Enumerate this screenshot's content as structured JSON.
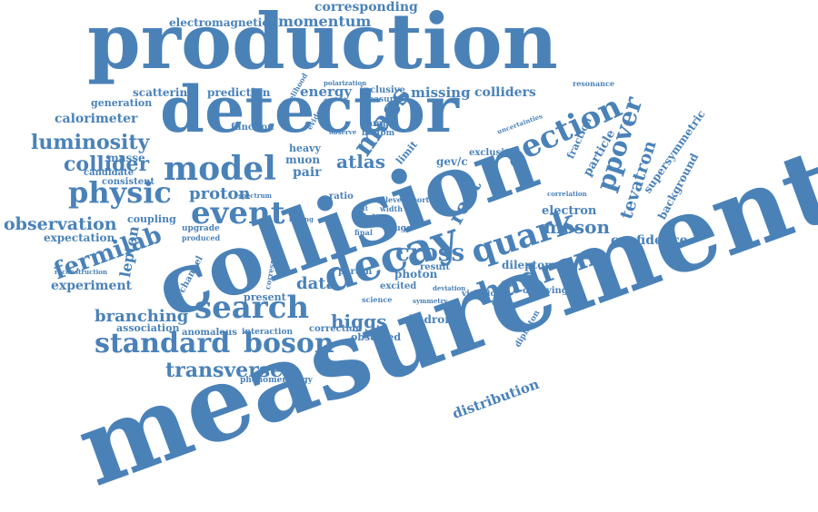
{
  "accent_color": "#4a82b8",
  "words": {
    "measurement": "measurement",
    "collision": "collision",
    "production": "production",
    "detector": "detector",
    "decay": "decay",
    "search": "search",
    "model": "model",
    "physic": "physic",
    "event": "event",
    "quark": "quark",
    "hadron": "hadron",
    "section": "section",
    "cross": "cross",
    "boson": "boson",
    "standard": "standard",
    "fermilab": "fermilab",
    "transverse": "transverse",
    "luminosity": "luminosity",
    "collider": "collider",
    "observation": "observation",
    "proton": "proton",
    "ppover": "ppover",
    "tevatron": "tevatron",
    "meson": "meson",
    "higgs": "higgs",
    "branching": "branching",
    "mass": "mass",
    "atlas": "atlas",
    "root": "root",
    "data": "data",
    "momentum": "momentum",
    "corresponding": "corresponding",
    "electromagnetic": "electromagnetic",
    "calorimeter": "calorimeter",
    "scattering": "scattering",
    "prediction": "prediction",
    "energy": "energy",
    "missing": "missing",
    "colliders": "colliders",
    "generation": "generation",
    "distribution": "distribution",
    "confidence": "confidence",
    "experiment": "experiment",
    "expectation": "expectation",
    "masse": "masse",
    "candidate": "candidate",
    "consistent": "consistent",
    "coupling": "coupling",
    "lepton": "lepton",
    "association": "association",
    "anomalous": "anomalous",
    "observed": "observed",
    "hadronic": "hadronic",
    "electron": "electron",
    "dilepton": "dilepton",
    "background": "background",
    "supersymmetric": "supersymmetric",
    "particle": "particle",
    "fraction": "fraction",
    "pair": "pair",
    "muon": "muon",
    "heavy": "heavy",
    "photon": "photon",
    "excited": "excited",
    "present": "present",
    "correction": "correction",
    "interaction": "interaction",
    "phenomenology": "phenomenology",
    "decaying": "decaying",
    "diphoton": "diphoton",
    "violation": "violation",
    "parton": "parton",
    "result": "result",
    "channel": "channel",
    "upgrade": "upgrade",
    "produced": "produced",
    "limit": "limit",
    "gev_c": "gev/c",
    "exclusive": "exclusive",
    "inclusive": "inclusive",
    "measure": "measure",
    "function": "function",
    "sample": "sample",
    "bottom": "bottom",
    "ratio": "ratio",
    "uncertainties": "uncertainties",
    "resonance": "resonance",
    "reconstruction": "reconstruction",
    "likelihood": "likelihood",
    "evidence": "evidence",
    "polarization": "polarization",
    "correspond": "correspond",
    "science": "science",
    "jet": "jet",
    "report": "report",
    "level": "level",
    "final": "final",
    "width": "width",
    "stat": "stat",
    "gauge": "gauge",
    "mixing": "mixing",
    "symmetry": "symmetry",
    "deviation": "deviation",
    "order": "order",
    "correlation": "correlation",
    "observe": "observe",
    "spectrum": "spectrum"
  }
}
